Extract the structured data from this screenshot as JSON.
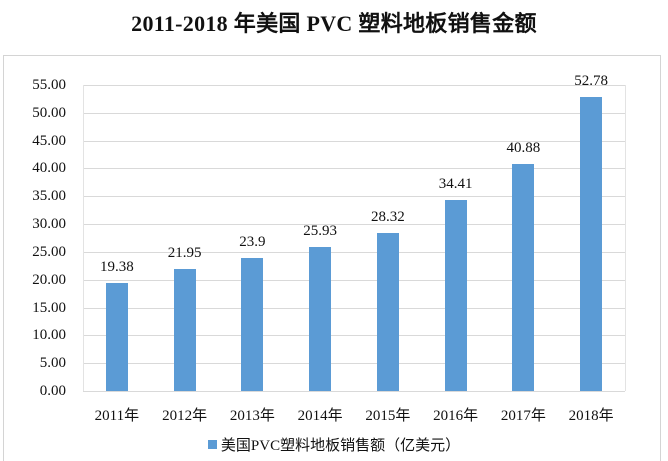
{
  "chart_data": {
    "type": "bar",
    "title": "2011-2018 年美国 PVC 塑料地板销售金额",
    "categories": [
      "2011年",
      "2012年",
      "2013年",
      "2014年",
      "2015年",
      "2016年",
      "2017年",
      "2018年"
    ],
    "series": [
      {
        "name": "美国PVC塑料地板销售额（亿美元）",
        "values": [
          19.38,
          21.95,
          23.9,
          25.93,
          28.32,
          34.41,
          40.88,
          52.78
        ],
        "labels": [
          "19.38",
          "21.95",
          "23.9",
          "25.93",
          "28.32",
          "34.41",
          "40.88",
          "52.78"
        ],
        "color": "#5b9bd5"
      }
    ],
    "xlabel": "",
    "ylabel": "",
    "ylim": [
      0,
      55
    ],
    "yticks": [
      "0.00",
      "5.00",
      "10.00",
      "15.00",
      "20.00",
      "25.00",
      "30.00",
      "35.00",
      "40.00",
      "45.00",
      "50.00",
      "55.00"
    ],
    "grid": true,
    "legend_position": "bottom"
  }
}
